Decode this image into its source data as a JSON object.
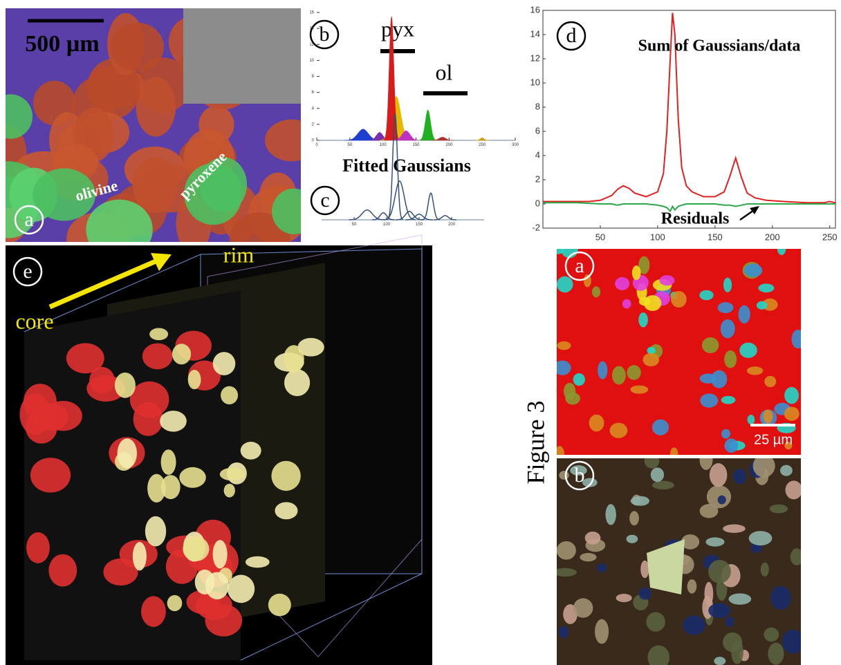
{
  "figure_label": "Figure 3",
  "panel_a": {
    "label": "a",
    "scale_bar": "500 µm",
    "olivine": "olivine",
    "pyroxene": "pyroxene"
  },
  "panel_b": {
    "label": "b",
    "pyx": "pyx",
    "ol": "ol"
  },
  "fitted_gaussians": "Fitted Gaussians",
  "panel_c": {
    "label": "c"
  },
  "panel_d": {
    "label": "d"
  },
  "panel_e": {
    "label": "e",
    "rim": "rim",
    "core": "core"
  },
  "map_a": {
    "label": "a",
    "scale_bar": "25 µm"
  },
  "map_b": {
    "label": "b"
  },
  "chart_data": [
    {
      "type": "gaussians",
      "fill": true,
      "xlim": [
        0,
        300
      ],
      "ylim": [
        0,
        16
      ],
      "xticks": [
        0,
        50,
        100,
        150,
        200,
        250,
        300
      ],
      "yticks": [
        0,
        2,
        4,
        6,
        8,
        10,
        12,
        14,
        16
      ],
      "series": [
        {
          "color": "#1f3fd0",
          "center": 70,
          "height": 1.4,
          "width": 8
        },
        {
          "color": "#7a2fb0",
          "center": 95,
          "height": 1.0,
          "width": 5
        },
        {
          "color": "#e8b800",
          "center": 120,
          "height": 5.5,
          "width": 7
        },
        {
          "color": "#d81b1b",
          "center": 113,
          "height": 15.5,
          "width": 3.5
        },
        {
          "color": "#c030c0",
          "center": 135,
          "height": 1.2,
          "width": 6
        },
        {
          "color": "#20b020",
          "center": 168,
          "height": 3.8,
          "width": 4
        },
        {
          "color": "#b03030",
          "center": 190,
          "height": 0.4,
          "width": 5
        },
        {
          "color": "#d0a000",
          "center": 250,
          "height": 0.3,
          "width": 3
        }
      ]
    },
    {
      "type": "gaussians",
      "fill": false,
      "xlim": [
        0,
        250
      ],
      "ylim": [
        0,
        16
      ],
      "xticks": [
        50,
        100,
        150,
        200
      ],
      "series": [
        {
          "color": "#34507a",
          "center": 70,
          "height": 1.4,
          "width": 8
        },
        {
          "color": "#34507a",
          "center": 95,
          "height": 1.0,
          "width": 5
        },
        {
          "color": "#34507a",
          "center": 113,
          "height": 15.0,
          "width": 3.5
        },
        {
          "color": "#34507a",
          "center": 120,
          "height": 5.5,
          "width": 7
        },
        {
          "color": "#34507a",
          "center": 135,
          "height": 1.2,
          "width": 6
        },
        {
          "color": "#34507a",
          "center": 150,
          "height": 0.8,
          "width": 6
        },
        {
          "color": "#34507a",
          "center": 168,
          "height": 3.8,
          "width": 4
        },
        {
          "color": "#34507a",
          "center": 190,
          "height": 0.6,
          "width": 5
        }
      ]
    },
    {
      "type": "line",
      "xlim": [
        0,
        255
      ],
      "ylim": [
        -2,
        16
      ],
      "xticks": [
        50,
        100,
        150,
        200,
        250
      ],
      "yticks": [
        -2,
        0,
        2,
        4,
        6,
        8,
        10,
        12,
        14,
        16
      ],
      "x": [
        0,
        10,
        20,
        30,
        40,
        50,
        60,
        65,
        70,
        75,
        80,
        90,
        100,
        105,
        108,
        111,
        113,
        115,
        118,
        121,
        125,
        130,
        140,
        150,
        158,
        163,
        168,
        173,
        178,
        185,
        195,
        210,
        230,
        245,
        250,
        255
      ],
      "series": [
        {
          "name": "Sum of Gaussians/data",
          "color": "#e02020",
          "values": [
            0.2,
            0.2,
            0.2,
            0.2,
            0.2,
            0.3,
            0.7,
            1.2,
            1.5,
            1.3,
            0.9,
            0.6,
            1.0,
            2.5,
            6,
            12,
            15.8,
            14,
            7,
            3,
            1.5,
            1.0,
            0.6,
            0.6,
            1.0,
            2.3,
            3.8,
            2.2,
            0.9,
            0.5,
            0.3,
            0.2,
            0.1,
            0.1,
            0.2,
            0.1
          ]
        },
        {
          "name": "Residuals",
          "color": "#2aa84a",
          "values": [
            0.1,
            0.1,
            0.1,
            0.1,
            0.05,
            0,
            0,
            -0.1,
            0,
            0,
            0,
            0,
            -0.1,
            -0.2,
            -0.3,
            -0.6,
            -0.2,
            -0.5,
            -0.2,
            -0.1,
            0,
            0,
            0,
            0,
            -0.1,
            -0.1,
            -0.2,
            -0.1,
            0,
            0,
            0,
            0,
            0,
            0,
            0,
            0
          ]
        }
      ]
    }
  ]
}
